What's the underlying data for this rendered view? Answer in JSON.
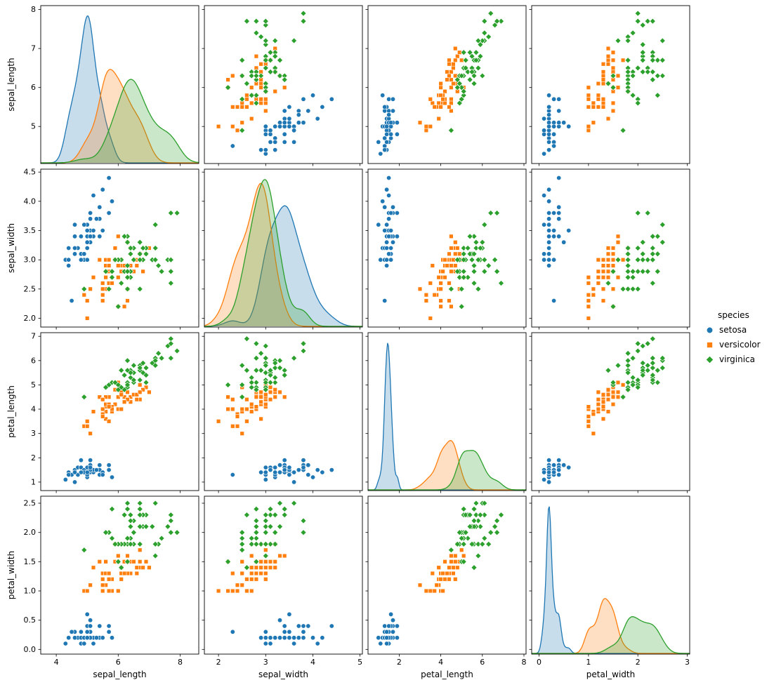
{
  "chart_data": {
    "type": "scatter",
    "subtype": "pairplot_scatter_matrix",
    "diagonal": "kde",
    "grid": false,
    "legend_position": "right-center",
    "legend": {
      "title": "species"
    },
    "variables": [
      "sepal_length",
      "sepal_width",
      "petal_length",
      "petal_width"
    ],
    "axes": {
      "sepal_length": {
        "xlim": [
          3.5,
          8.6
        ],
        "ylim": [
          4.05,
          8.1
        ],
        "xticks": {
          "values": [
            4,
            6,
            8
          ],
          "labels": [
            "4",
            "6",
            "8"
          ]
        },
        "yticks": {
          "values": [
            5,
            6,
            7,
            8
          ],
          "labels": [
            "5",
            "6",
            "7",
            "8"
          ]
        }
      },
      "sepal_width": {
        "xlim": [
          1.7,
          5.05
        ],
        "ylim": [
          1.85,
          4.55
        ],
        "xticks": {
          "values": [
            2,
            3,
            4,
            5
          ],
          "labels": [
            "2",
            "3",
            "4",
            "5"
          ]
        },
        "yticks": {
          "values": [
            2,
            2.5,
            3,
            3.5,
            4,
            4.5
          ],
          "labels": [
            "2.0",
            "2.5",
            "3.0",
            "3.5",
            "4.0",
            "4.5"
          ]
        }
      },
      "petal_length": {
        "xlim": [
          0.5,
          8.1
        ],
        "ylim": [
          0.65,
          7.15
        ],
        "xticks": {
          "values": [
            2,
            4,
            6,
            8
          ],
          "labels": [
            "2",
            "4",
            "6",
            "8"
          ]
        },
        "yticks": {
          "values": [
            1,
            2,
            3,
            4,
            5,
            6,
            7
          ],
          "labels": [
            "1",
            "2",
            "3",
            "4",
            "5",
            "6",
            "7"
          ]
        }
      },
      "petal_width": {
        "xlim": [
          -0.15,
          3.05
        ],
        "ylim": [
          -0.08,
          2.62
        ],
        "xticks": {
          "values": [
            0,
            1,
            2,
            3
          ],
          "labels": [
            "0",
            "1",
            "2",
            "3"
          ]
        },
        "yticks": {
          "values": [
            0,
            0.5,
            1,
            1.5,
            2,
            2.5
          ],
          "labels": [
            "0.0",
            "0.5",
            "1.0",
            "1.5",
            "2.0",
            "2.5"
          ]
        }
      }
    },
    "series": [
      {
        "name": "setosa",
        "color": "#1f77b4",
        "marker": "circle",
        "points": [
          [
            5.1,
            3.5,
            1.4,
            0.2
          ],
          [
            4.9,
            3.0,
            1.4,
            0.2
          ],
          [
            4.7,
            3.2,
            1.3,
            0.2
          ],
          [
            4.6,
            3.1,
            1.5,
            0.2
          ],
          [
            5.0,
            3.6,
            1.4,
            0.2
          ],
          [
            5.4,
            3.9,
            1.7,
            0.4
          ],
          [
            4.6,
            3.4,
            1.4,
            0.3
          ],
          [
            5.0,
            3.4,
            1.5,
            0.2
          ],
          [
            4.4,
            2.9,
            1.4,
            0.2
          ],
          [
            4.9,
            3.1,
            1.5,
            0.1
          ],
          [
            5.4,
            3.7,
            1.5,
            0.2
          ],
          [
            4.8,
            3.4,
            1.6,
            0.2
          ],
          [
            4.8,
            3.0,
            1.4,
            0.1
          ],
          [
            4.3,
            3.0,
            1.1,
            0.1
          ],
          [
            5.8,
            4.0,
            1.2,
            0.2
          ],
          [
            5.7,
            4.4,
            1.5,
            0.4
          ],
          [
            5.4,
            3.9,
            1.3,
            0.4
          ],
          [
            5.1,
            3.5,
            1.4,
            0.3
          ],
          [
            5.7,
            3.8,
            1.7,
            0.3
          ],
          [
            5.1,
            3.8,
            1.5,
            0.3
          ],
          [
            5.4,
            3.4,
            1.7,
            0.2
          ],
          [
            5.1,
            3.7,
            1.5,
            0.4
          ],
          [
            4.6,
            3.6,
            1.0,
            0.2
          ],
          [
            5.1,
            3.3,
            1.7,
            0.5
          ],
          [
            4.8,
            3.4,
            1.9,
            0.2
          ],
          [
            5.0,
            3.0,
            1.6,
            0.2
          ],
          [
            5.0,
            3.4,
            1.6,
            0.4
          ],
          [
            5.2,
            3.5,
            1.5,
            0.2
          ],
          [
            5.2,
            3.4,
            1.4,
            0.2
          ],
          [
            4.7,
            3.2,
            1.6,
            0.2
          ],
          [
            4.8,
            3.1,
            1.6,
            0.2
          ],
          [
            5.4,
            3.4,
            1.5,
            0.4
          ],
          [
            5.2,
            4.1,
            1.5,
            0.1
          ],
          [
            5.5,
            4.2,
            1.4,
            0.2
          ],
          [
            4.9,
            3.1,
            1.5,
            0.2
          ],
          [
            5.0,
            3.2,
            1.2,
            0.2
          ],
          [
            5.5,
            3.5,
            1.3,
            0.2
          ],
          [
            4.9,
            3.6,
            1.4,
            0.1
          ],
          [
            4.4,
            3.0,
            1.3,
            0.2
          ],
          [
            5.1,
            3.4,
            1.5,
            0.2
          ],
          [
            5.0,
            3.5,
            1.3,
            0.3
          ],
          [
            4.5,
            2.3,
            1.3,
            0.3
          ],
          [
            4.4,
            3.2,
            1.3,
            0.2
          ],
          [
            5.0,
            3.5,
            1.6,
            0.6
          ],
          [
            5.1,
            3.8,
            1.9,
            0.4
          ],
          [
            4.8,
            3.0,
            1.4,
            0.3
          ],
          [
            5.1,
            3.8,
            1.6,
            0.2
          ],
          [
            4.6,
            3.2,
            1.4,
            0.2
          ],
          [
            5.3,
            3.7,
            1.5,
            0.2
          ],
          [
            5.0,
            3.3,
            1.4,
            0.2
          ]
        ]
      },
      {
        "name": "versicolor",
        "color": "#ff7f0e",
        "marker": "square",
        "points": [
          [
            7.0,
            3.2,
            4.7,
            1.4
          ],
          [
            6.4,
            3.2,
            4.5,
            1.5
          ],
          [
            6.9,
            3.1,
            4.9,
            1.5
          ],
          [
            5.5,
            2.3,
            4.0,
            1.3
          ],
          [
            6.5,
            2.8,
            4.6,
            1.5
          ],
          [
            5.7,
            2.8,
            4.5,
            1.3
          ],
          [
            6.3,
            3.3,
            4.7,
            1.6
          ],
          [
            4.9,
            2.4,
            3.3,
            1.0
          ],
          [
            6.6,
            2.9,
            4.6,
            1.3
          ],
          [
            5.2,
            2.7,
            3.9,
            1.4
          ],
          [
            5.0,
            2.0,
            3.5,
            1.0
          ],
          [
            5.9,
            3.0,
            4.2,
            1.5
          ],
          [
            6.0,
            2.2,
            4.0,
            1.0
          ],
          [
            6.1,
            2.9,
            4.7,
            1.4
          ],
          [
            5.6,
            2.9,
            3.6,
            1.3
          ],
          [
            6.7,
            3.1,
            4.4,
            1.4
          ],
          [
            5.6,
            3.0,
            4.5,
            1.5
          ],
          [
            5.8,
            2.7,
            4.1,
            1.0
          ],
          [
            6.2,
            2.2,
            4.5,
            1.5
          ],
          [
            5.6,
            2.5,
            3.9,
            1.1
          ],
          [
            5.9,
            3.2,
            4.8,
            1.8
          ],
          [
            6.1,
            2.8,
            4.0,
            1.3
          ],
          [
            6.3,
            2.5,
            4.9,
            1.5
          ],
          [
            6.1,
            2.8,
            4.7,
            1.2
          ],
          [
            6.4,
            2.9,
            4.3,
            1.3
          ],
          [
            6.6,
            3.0,
            4.4,
            1.4
          ],
          [
            6.8,
            2.8,
            4.8,
            1.4
          ],
          [
            6.7,
            3.0,
            5.0,
            1.7
          ],
          [
            6.0,
            2.9,
            4.5,
            1.5
          ],
          [
            5.7,
            2.6,
            3.5,
            1.0
          ],
          [
            5.5,
            2.4,
            3.8,
            1.1
          ],
          [
            5.5,
            2.4,
            3.7,
            1.0
          ],
          [
            5.8,
            2.7,
            3.9,
            1.2
          ],
          [
            6.0,
            2.7,
            5.1,
            1.6
          ],
          [
            5.4,
            3.0,
            4.5,
            1.5
          ],
          [
            6.0,
            3.4,
            4.5,
            1.6
          ],
          [
            6.7,
            3.1,
            4.7,
            1.5
          ],
          [
            6.3,
            2.3,
            4.4,
            1.3
          ],
          [
            5.6,
            3.0,
            4.1,
            1.3
          ],
          [
            5.5,
            2.5,
            4.0,
            1.3
          ],
          [
            5.5,
            2.6,
            4.4,
            1.2
          ],
          [
            6.1,
            3.0,
            4.6,
            1.4
          ],
          [
            5.8,
            2.6,
            4.0,
            1.2
          ],
          [
            5.0,
            2.3,
            3.3,
            1.0
          ],
          [
            5.6,
            2.7,
            4.2,
            1.3
          ],
          [
            5.7,
            3.0,
            4.2,
            1.2
          ],
          [
            5.7,
            2.9,
            4.2,
            1.3
          ],
          [
            6.2,
            2.9,
            4.3,
            1.3
          ],
          [
            5.1,
            2.5,
            3.0,
            1.1
          ],
          [
            5.7,
            2.8,
            4.1,
            1.3
          ]
        ]
      },
      {
        "name": "virginica",
        "color": "#2ca02c",
        "marker": "diamond",
        "points": [
          [
            6.3,
            3.3,
            6.0,
            2.5
          ],
          [
            5.8,
            2.7,
            5.1,
            1.9
          ],
          [
            7.1,
            3.0,
            5.9,
            2.1
          ],
          [
            6.3,
            2.9,
            5.6,
            1.8
          ],
          [
            6.5,
            3.0,
            5.8,
            2.2
          ],
          [
            7.6,
            3.0,
            6.6,
            2.1
          ],
          [
            4.9,
            2.5,
            4.5,
            1.7
          ],
          [
            7.3,
            2.9,
            6.3,
            1.8
          ],
          [
            6.7,
            2.5,
            5.8,
            1.8
          ],
          [
            7.2,
            3.6,
            6.1,
            2.5
          ],
          [
            6.5,
            3.2,
            5.1,
            2.0
          ],
          [
            6.4,
            2.7,
            5.3,
            1.9
          ],
          [
            6.8,
            3.0,
            5.5,
            2.1
          ],
          [
            5.7,
            2.5,
            5.0,
            2.0
          ],
          [
            5.8,
            2.8,
            5.1,
            2.4
          ],
          [
            6.4,
            3.2,
            5.3,
            2.3
          ],
          [
            6.5,
            3.0,
            5.5,
            1.8
          ],
          [
            7.7,
            3.8,
            6.7,
            2.2
          ],
          [
            7.7,
            2.6,
            6.9,
            2.3
          ],
          [
            6.0,
            2.2,
            5.0,
            1.5
          ],
          [
            6.9,
            3.2,
            5.7,
            2.3
          ],
          [
            5.6,
            2.8,
            4.9,
            2.0
          ],
          [
            7.7,
            2.8,
            6.7,
            2.0
          ],
          [
            6.3,
            2.7,
            4.9,
            1.8
          ],
          [
            6.7,
            3.3,
            5.7,
            2.1
          ],
          [
            7.2,
            3.2,
            6.0,
            1.8
          ],
          [
            6.2,
            2.8,
            4.8,
            1.8
          ],
          [
            6.1,
            3.0,
            4.9,
            1.8
          ],
          [
            6.4,
            2.8,
            5.6,
            2.1
          ],
          [
            7.2,
            3.0,
            5.8,
            1.6
          ],
          [
            7.4,
            2.8,
            6.1,
            1.9
          ],
          [
            7.9,
            3.8,
            6.4,
            2.0
          ],
          [
            6.4,
            2.8,
            5.6,
            2.2
          ],
          [
            6.3,
            2.8,
            5.1,
            1.5
          ],
          [
            6.1,
            2.6,
            5.6,
            1.4
          ],
          [
            7.7,
            3.0,
            6.1,
            2.3
          ],
          [
            6.3,
            3.4,
            5.6,
            2.4
          ],
          [
            6.4,
            3.1,
            5.5,
            1.8
          ],
          [
            6.0,
            3.0,
            4.8,
            1.8
          ],
          [
            6.9,
            3.1,
            5.4,
            2.1
          ],
          [
            6.7,
            3.1,
            5.6,
            2.4
          ],
          [
            6.9,
            3.1,
            5.1,
            2.3
          ],
          [
            5.8,
            2.7,
            5.1,
            1.9
          ],
          [
            6.8,
            3.2,
            5.9,
            2.3
          ],
          [
            6.7,
            3.3,
            5.7,
            2.5
          ],
          [
            6.7,
            3.0,
            5.2,
            2.3
          ],
          [
            6.3,
            2.5,
            5.0,
            1.9
          ],
          [
            6.5,
            3.0,
            5.2,
            2.0
          ],
          [
            6.2,
            3.4,
            5.4,
            2.3
          ],
          [
            5.9,
            3.0,
            5.1,
            1.8
          ]
        ]
      }
    ]
  }
}
